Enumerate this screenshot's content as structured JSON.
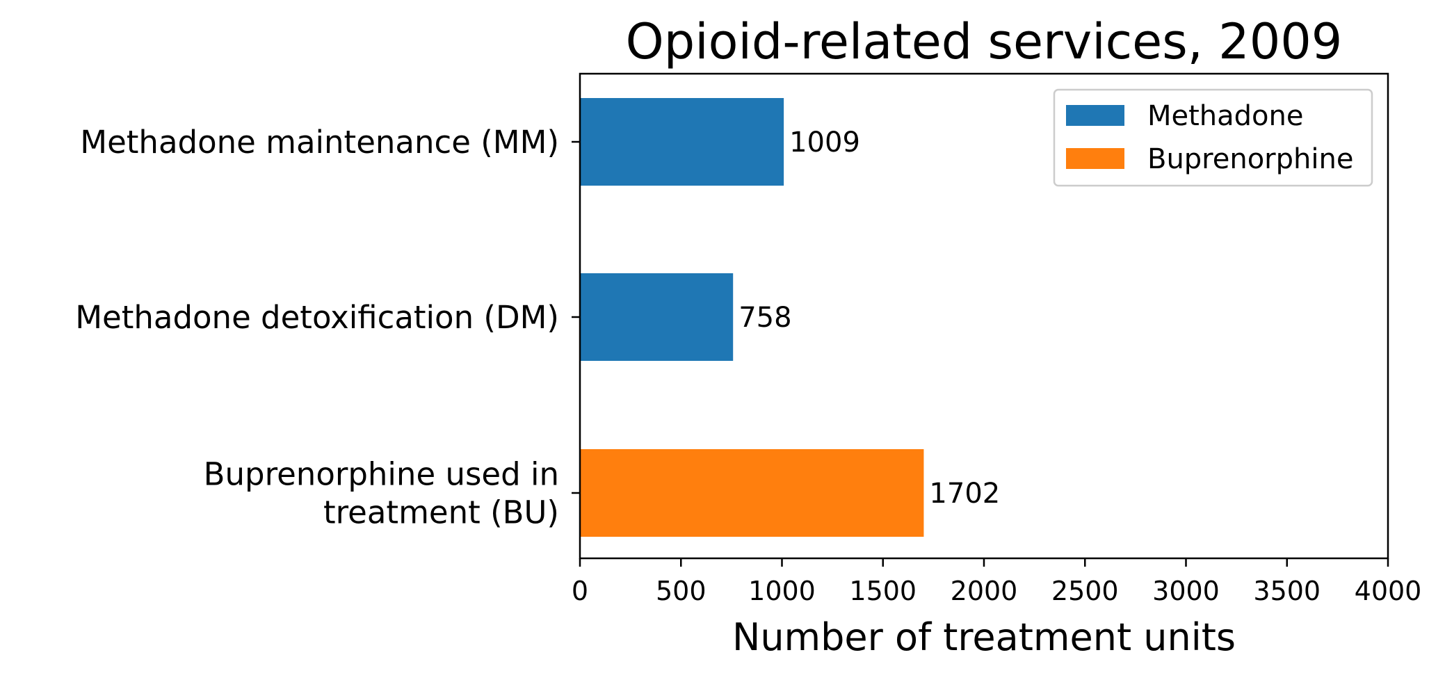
{
  "chart_data": {
    "type": "bar",
    "orientation": "horizontal",
    "title": "Opioid-related services, 2009",
    "xlabel": "Number of treatment units",
    "ylabel": "",
    "xlim": [
      0,
      4000
    ],
    "xticks": [
      "0",
      "500",
      "1000",
      "1500",
      "2000",
      "2500",
      "3000",
      "3500",
      "4000"
    ],
    "grid": false,
    "legend_position": "top-right",
    "categories": [
      [
        "Methadone maintenance (MM)"
      ],
      [
        "Methadone detoxification (DM)"
      ],
      [
        "Buprenorphine used in",
        "treatment (BU)"
      ]
    ],
    "values": [
      1009,
      758,
      1702
    ],
    "data_labels": [
      "1009",
      "758",
      "1702"
    ],
    "bar_series": [
      "Methadone",
      "Methadone",
      "Buprenorphine"
    ],
    "series": [
      {
        "name": "Methadone",
        "color": "#1f77b4"
      },
      {
        "name": "Buprenorphine",
        "color": "#ff7f0e"
      }
    ]
  }
}
